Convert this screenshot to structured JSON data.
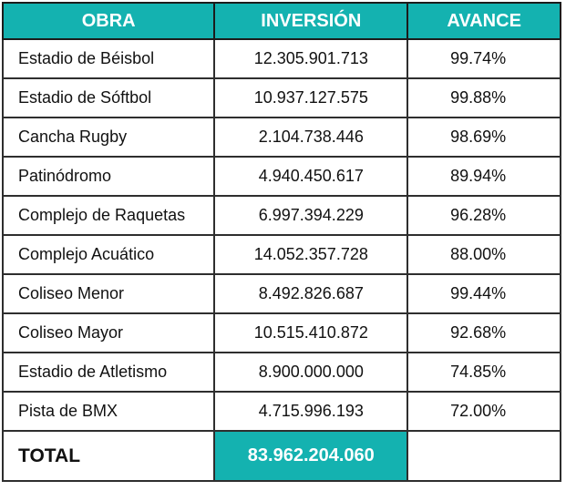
{
  "colors": {
    "accent_teal": "#14b2b0",
    "border_dark": "#2e2e2e",
    "header_text": "#ffffff",
    "body_text": "#111111",
    "background": "#ffffff"
  },
  "table": {
    "headers": [
      "OBRA",
      "INVERSIÓN",
      "AVANCE"
    ],
    "rows": [
      {
        "obra": "Estadio de Béisbol",
        "inversion": "12.305.901.713",
        "avance": "99.74%"
      },
      {
        "obra": "Estadio de Sóftbol",
        "inversion": "10.937.127.575",
        "avance": "99.88%"
      },
      {
        "obra": "Cancha Rugby",
        "inversion": "2.104.738.446",
        "avance": "98.69%"
      },
      {
        "obra": "Patinódromo",
        "inversion": "4.940.450.617",
        "avance": "89.94%"
      },
      {
        "obra": "Complejo de Raquetas",
        "inversion": "6.997.394.229",
        "avance": "96.28%"
      },
      {
        "obra": "Complejo Acuático",
        "inversion": "14.052.357.728",
        "avance": "88.00%"
      },
      {
        "obra": "Coliseo Menor",
        "inversion": "8.492.826.687",
        "avance": "99.44%"
      },
      {
        "obra": "Coliseo Mayor",
        "inversion": "10.515.410.872",
        "avance": "92.68%"
      },
      {
        "obra": "Estadio de Atletismo",
        "inversion": "8.900.000.000",
        "avance": "74.85%"
      },
      {
        "obra": "Pista de BMX",
        "inversion": "4.715.996.193",
        "avance": "72.00%"
      }
    ],
    "total": {
      "label": "TOTAL",
      "inversion": "83.962.204.060"
    }
  },
  "chart_data": {
    "type": "table",
    "title": "",
    "columns": [
      "OBRA",
      "INVERSIÓN",
      "AVANCE"
    ],
    "rows": [
      [
        "Estadio de Béisbol",
        12305901713,
        99.74
      ],
      [
        "Estadio de Sóftbol",
        10937127575,
        99.88
      ],
      [
        "Cancha Rugby",
        2104738446,
        98.69
      ],
      [
        "Patinódromo",
        4940450617,
        89.94
      ],
      [
        "Complejo de Raquetas",
        6997394229,
        96.28
      ],
      [
        "Complejo Acuático",
        14052357728,
        88.0
      ],
      [
        "Coliseo Menor",
        8492826687,
        99.44
      ],
      [
        "Coliseo Mayor",
        10515410872,
        92.68
      ],
      [
        "Estadio de Atletismo",
        8900000000,
        74.85
      ],
      [
        "Pista de BMX",
        4715996193,
        72.0
      ]
    ],
    "total_row": [
      "TOTAL",
      83962204060,
      null
    ],
    "notes": "Inversión values displayed with dot thousand separators; avance shown as percent"
  }
}
